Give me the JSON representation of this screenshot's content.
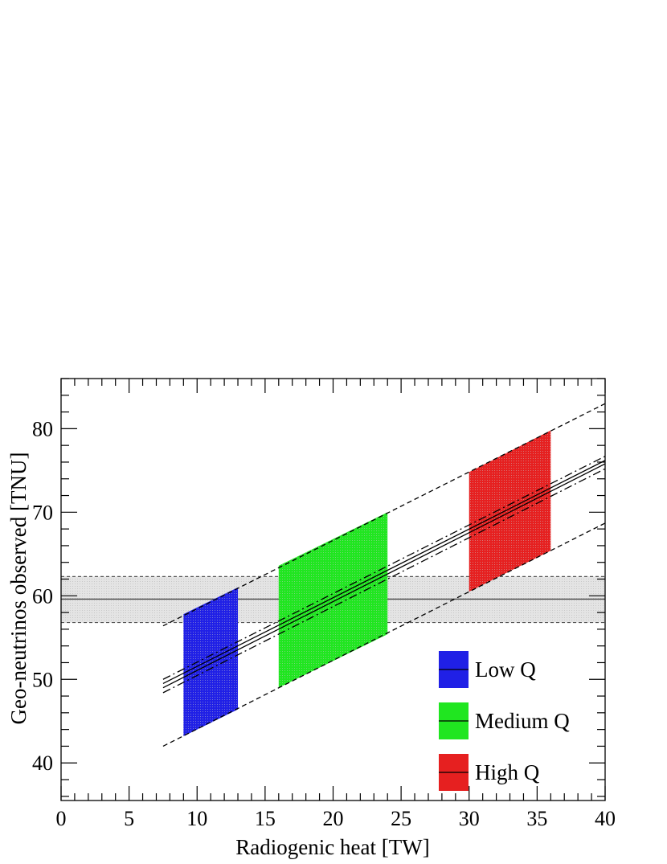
{
  "chart_data": {
    "type": "line",
    "xlabel": "Radiogenic heat [TW]",
    "ylabel": "Geo-neutrinos observed [TNU]",
    "xlim": [
      0,
      40
    ],
    "ylim": [
      35.5,
      86
    ],
    "x_ticks": [
      "0",
      "5",
      "10",
      "15",
      "20",
      "25",
      "30",
      "35",
      "40"
    ],
    "y_ticks": [
      "40",
      "50",
      "60",
      "70",
      "80"
    ],
    "grid": false,
    "legend_position": "bottom-right",
    "colors": {
      "low": "#2020e6",
      "medium": "#20e620",
      "high": "#e62020",
      "band": "#e4e4e4"
    },
    "observed_band": {
      "center": 59.6,
      "low": 56.8,
      "high": 62.3
    },
    "fit_lines": [
      {
        "style": "solid",
        "x": [
          7.5,
          40
        ],
        "y": [
          49.0,
          75.8
        ]
      },
      {
        "style": "solid",
        "x": [
          7.5,
          40
        ],
        "y": [
          49.5,
          76.2
        ]
      },
      {
        "style": "dashdot",
        "x": [
          7.5,
          40
        ],
        "y": [
          48.4,
          75.2
        ]
      },
      {
        "style": "dashdot",
        "x": [
          7.5,
          40
        ],
        "y": [
          50.0,
          76.7
        ]
      },
      {
        "style": "dashed",
        "x": [
          7.5,
          40
        ],
        "y": [
          56.4,
          83.0
        ]
      },
      {
        "style": "dashed",
        "x": [
          7.5,
          40
        ],
        "y": [
          42.0,
          68.7
        ]
      }
    ],
    "series": [
      {
        "name": "Low Q",
        "color": "#2020e6",
        "x": [
          9.0,
          13.0
        ],
        "upper": [
          57.8,
          61.0
        ],
        "lower": [
          43.2,
          46.4
        ]
      },
      {
        "name": "Medium Q",
        "color": "#20e620",
        "x": [
          16.0,
          24.0
        ],
        "upper": [
          63.6,
          70.0
        ],
        "lower": [
          49.0,
          55.4
        ]
      },
      {
        "name": "High Q",
        "color": "#e62020",
        "x": [
          30.0,
          36.0
        ],
        "upper": [
          74.8,
          79.8
        ],
        "lower": [
          60.5,
          65.4
        ]
      }
    ]
  }
}
